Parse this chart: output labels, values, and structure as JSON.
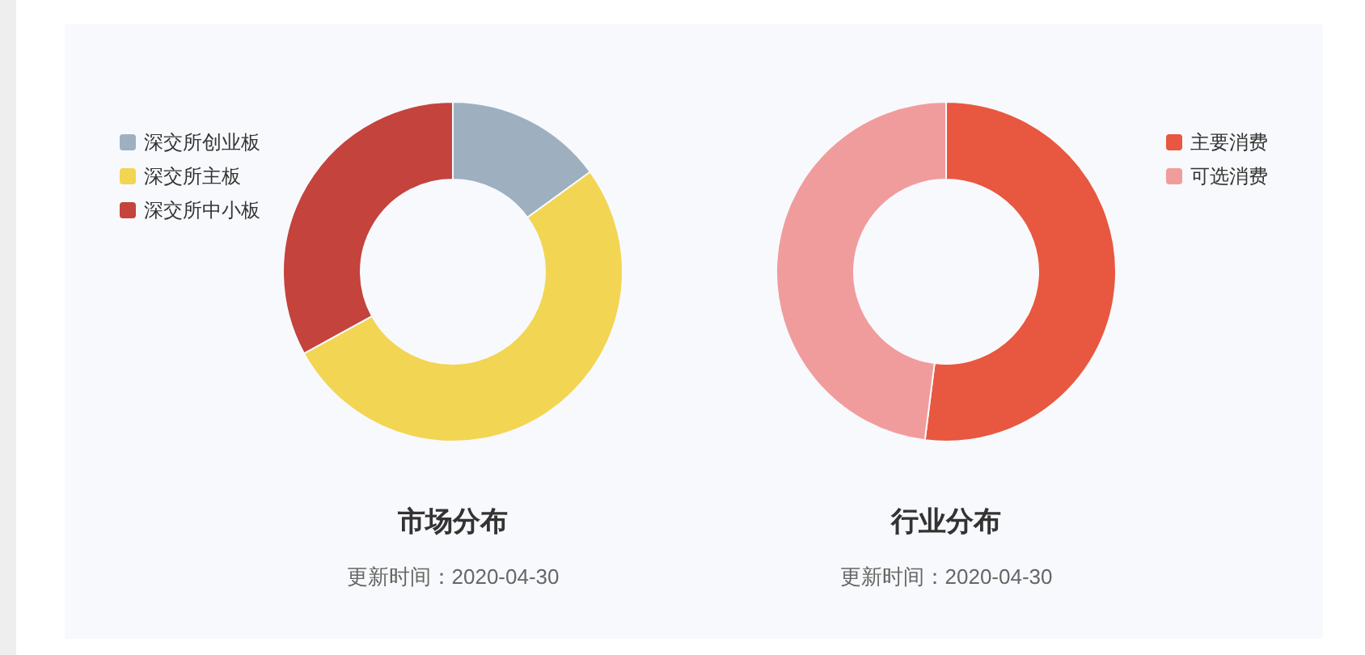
{
  "chart_data": [
    {
      "type": "donut",
      "title": "市场分布",
      "subtitle": "更新时间：2020-04-30",
      "legend": "top left",
      "categories": [
        "深交所创业板",
        "深交所主板",
        "深交所中小板"
      ],
      "values": [
        15,
        52,
        33
      ],
      "colors": [
        "#9eb0bf",
        "#f2d552",
        "#c4433d"
      ]
    },
    {
      "type": "donut",
      "title": "行业分布",
      "subtitle": "更新时间：2020-04-30",
      "legend": "top right",
      "categories": [
        "主要消费",
        "可选消费"
      ],
      "values": [
        52,
        48
      ],
      "colors": [
        "#e8573f",
        "#f19c9c"
      ]
    }
  ]
}
